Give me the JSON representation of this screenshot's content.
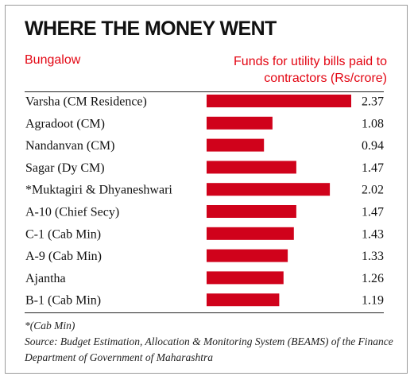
{
  "title": "WHERE THE MONEY WENT",
  "column_left_header": "Bungalow",
  "column_right_header": "Funds for utility bills paid to contractors (Rs/crore)",
  "colors": {
    "bar": "#d0021b",
    "header": "#e30613",
    "text": "#111111"
  },
  "chart_data": {
    "type": "bar",
    "orientation": "horizontal",
    "title": "WHERE THE MONEY WENT",
    "xlabel": "Funds for utility bills paid to contractors (Rs/crore)",
    "ylabel": "Bungalow",
    "xlim": [
      0,
      2.37
    ],
    "grid": false,
    "categories": [
      "Varsha (CM Residence)",
      "Agradoot (CM)",
      "Nandanvan (CM)",
      "Sagar (Dy CM)",
      "*Muktagiri & Dhyaneshwari",
      "A-10 (Chief Secy)",
      "C-1 (Cab Min)",
      "A-9 (Cab Min)",
      "Ajantha",
      "B-1 (Cab Min)"
    ],
    "values": [
      2.37,
      1.08,
      0.94,
      1.47,
      2.02,
      1.47,
      1.43,
      1.33,
      1.26,
      1.19
    ],
    "value_labels": [
      "2.37",
      "1.08",
      "0.94",
      "1.47",
      "2.02",
      "1.47",
      "1.43",
      "1.33",
      "1.26",
      "1.19"
    ]
  },
  "footnote_1": "*(Cab Min)",
  "footnote_2": "Source: Budget Estimation, Allocation & Monitoring System (BEAMS) of the Finance Department of Government of Maharashtra"
}
